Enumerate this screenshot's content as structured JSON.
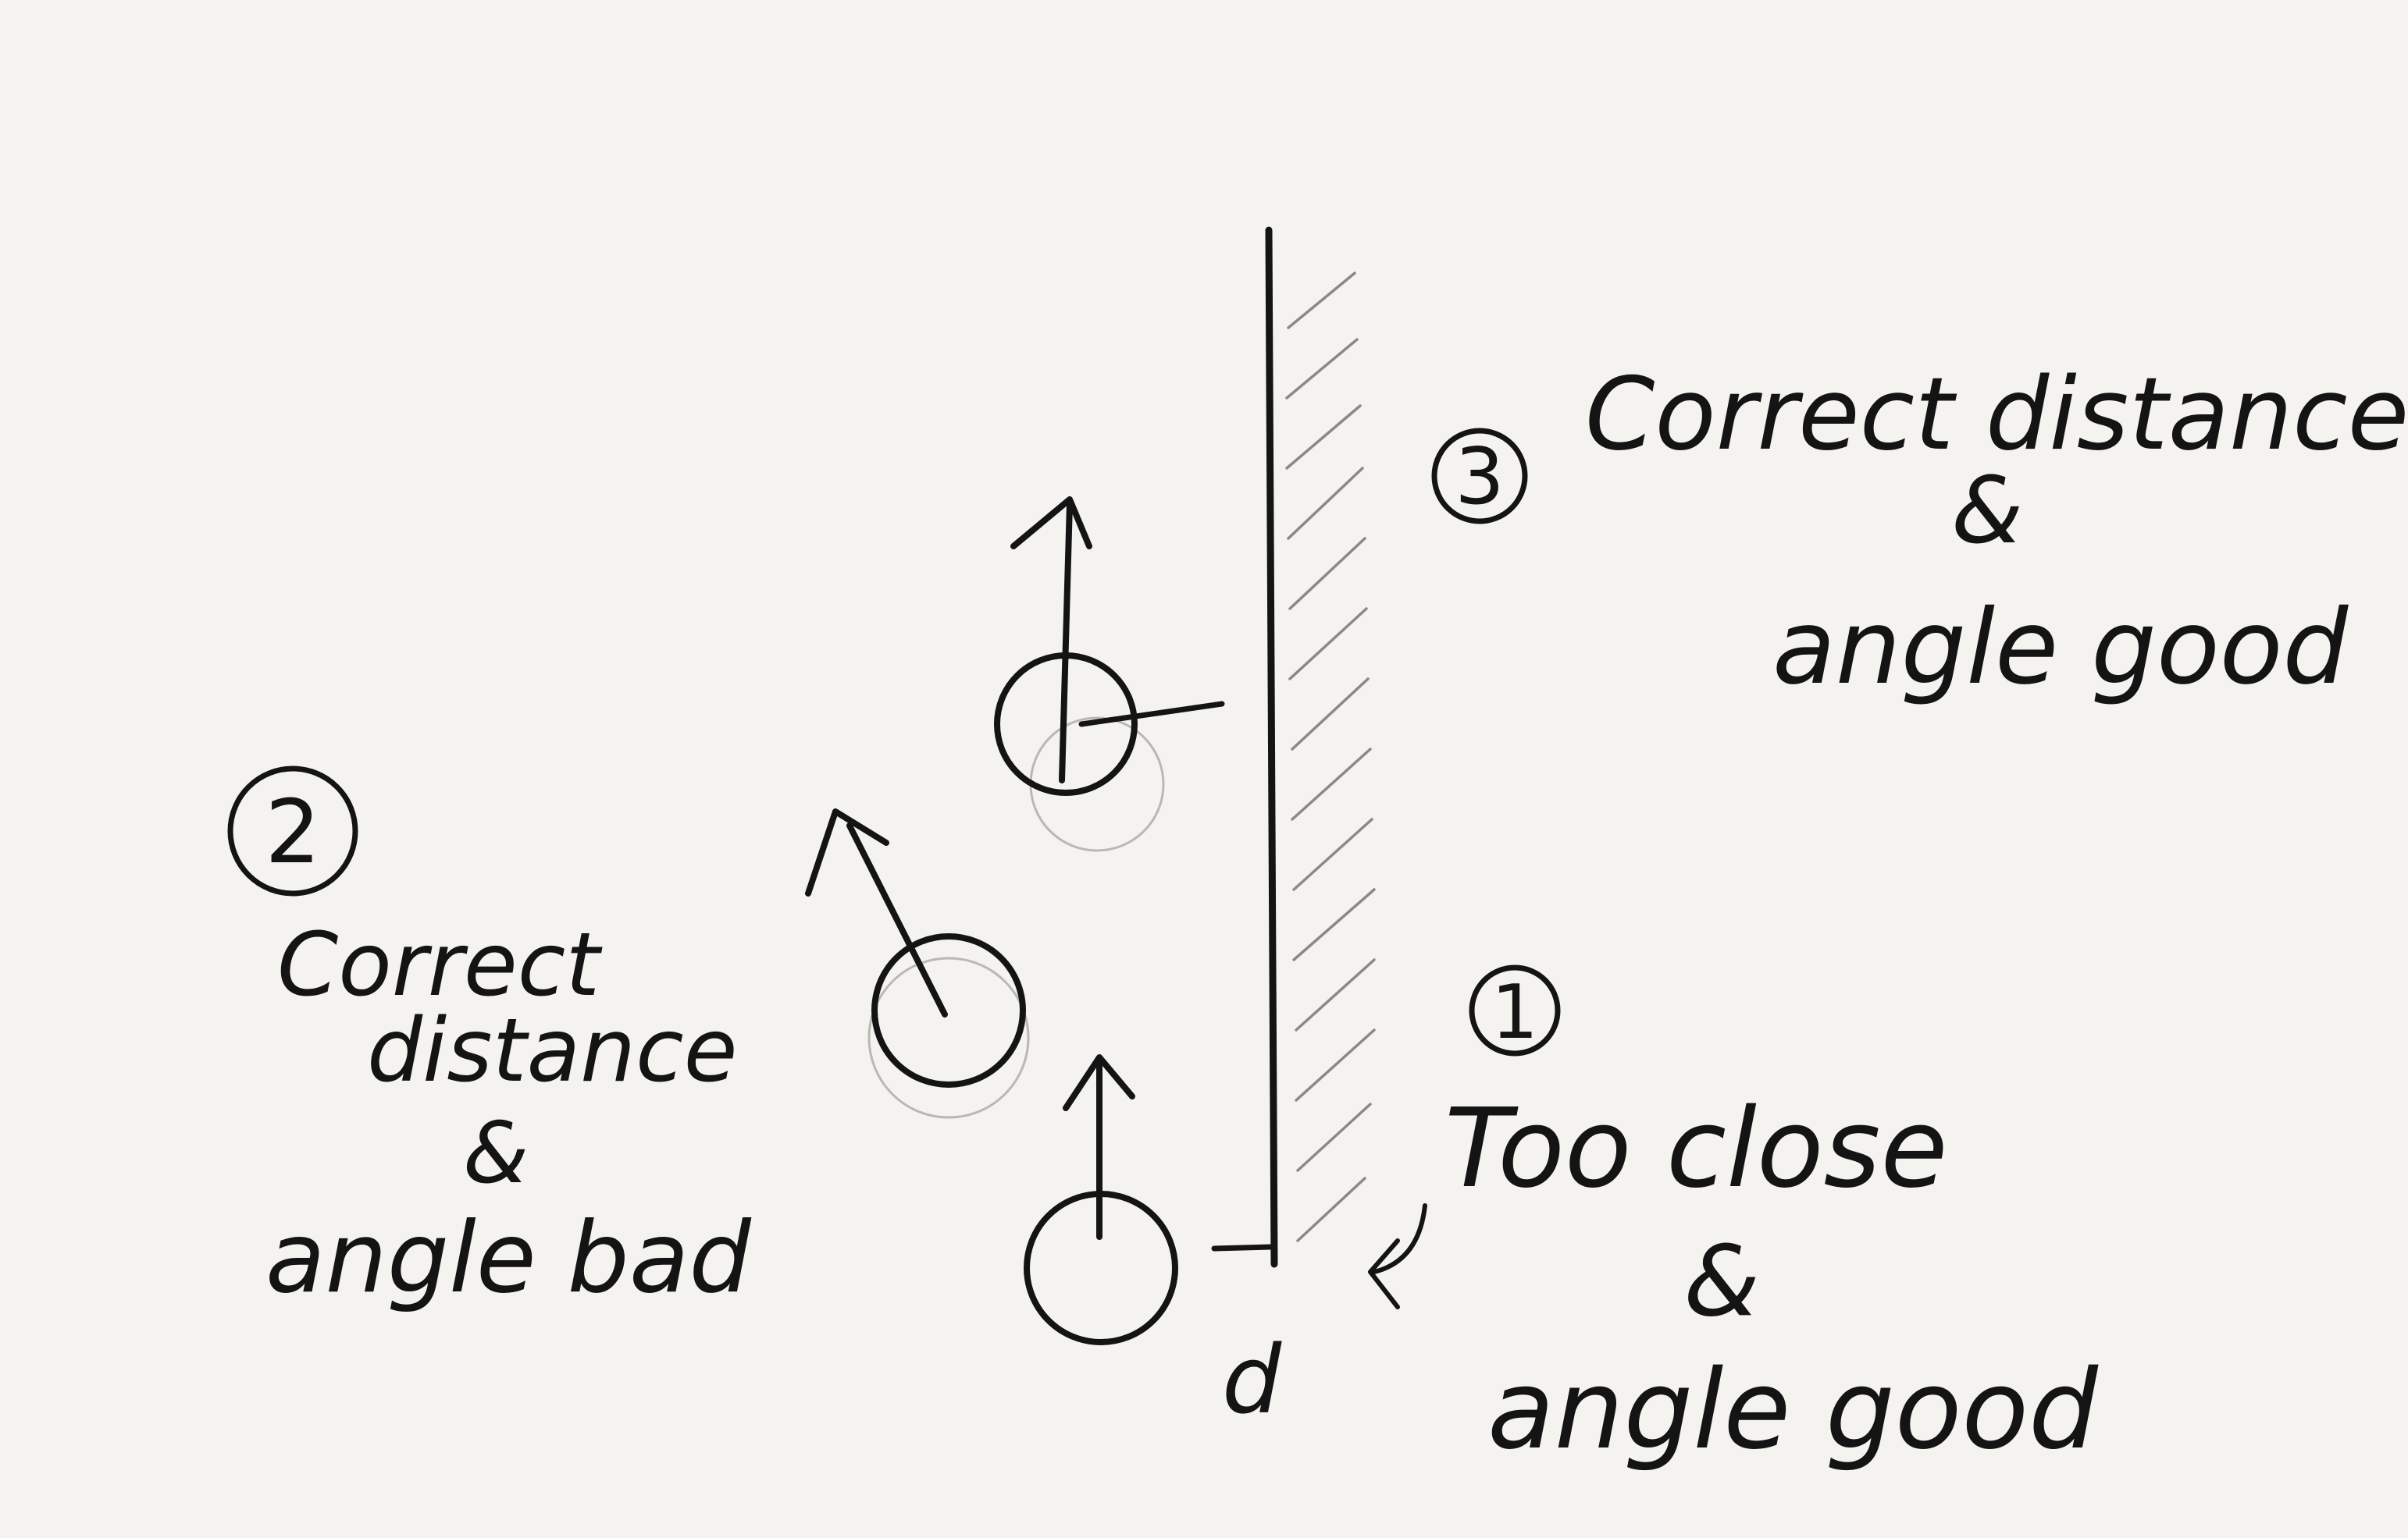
{
  "markers": {
    "one": "1",
    "two": "2",
    "three": "3"
  },
  "labels": {
    "case1": [
      "Too close",
      "&",
      "angle good"
    ],
    "case2": [
      "Correct",
      "distance",
      "&",
      "angle bad"
    ],
    "case3": [
      "Correct distance",
      "&",
      "angle good"
    ],
    "distance": "d"
  },
  "colors": {
    "paper": "#f4f3ef",
    "ink": "#141414",
    "pencil_ghost": "#b9b8b3"
  }
}
